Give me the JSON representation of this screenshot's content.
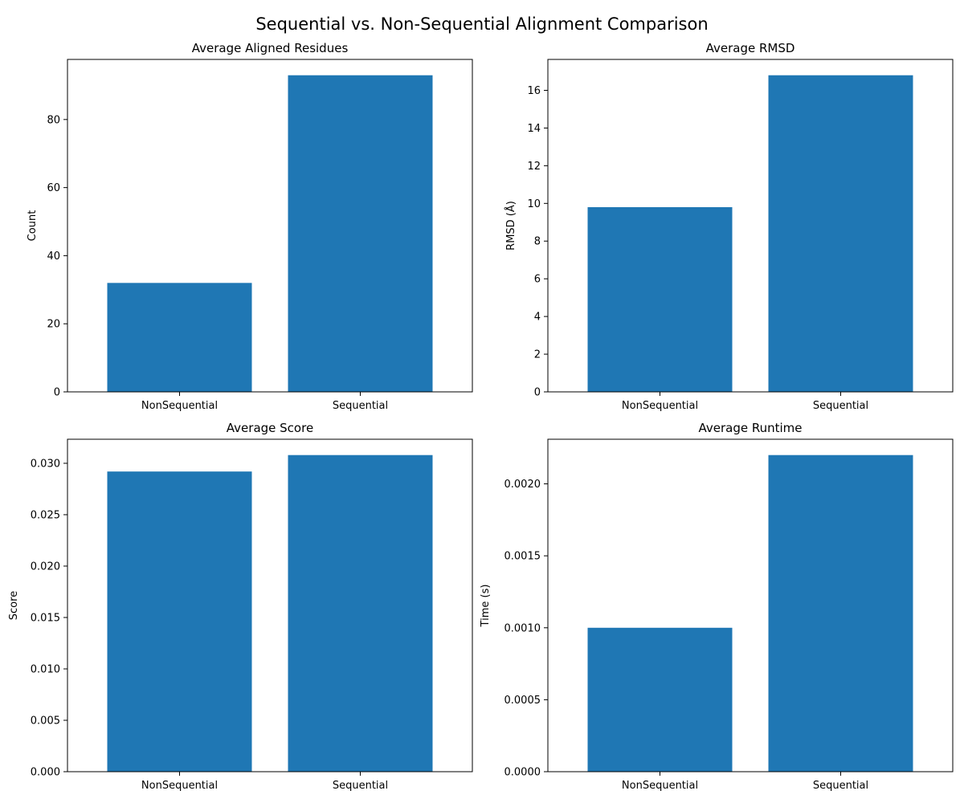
{
  "figure": {
    "title": "Sequential vs. Non-Sequential Alignment Comparison",
    "bar_color": "#1f77b4"
  },
  "chart_data": [
    {
      "type": "bar",
      "title": "Average Aligned Residues",
      "xlabel": "",
      "ylabel": "Count",
      "categories": [
        "NonSequential",
        "Sequential"
      ],
      "values": [
        32.0,
        93.0
      ],
      "ylim": [
        0,
        97.65
      ],
      "yticks": [
        0,
        20,
        40,
        60,
        80
      ],
      "ytick_labels": [
        "0",
        "20",
        "40",
        "60",
        "80"
      ],
      "grid": false,
      "legend": "none"
    },
    {
      "type": "bar",
      "title": "Average RMSD",
      "xlabel": "",
      "ylabel": "RMSD (Å)",
      "categories": [
        "NonSequential",
        "Sequential"
      ],
      "values": [
        9.8,
        16.8
      ],
      "ylim": [
        0,
        17.64
      ],
      "yticks": [
        0,
        2,
        4,
        6,
        8,
        10,
        12,
        14,
        16
      ],
      "ytick_labels": [
        "0",
        "2",
        "4",
        "6",
        "8",
        "10",
        "12",
        "14",
        "16"
      ],
      "grid": false,
      "legend": "none"
    },
    {
      "type": "bar",
      "title": "Average Score",
      "xlabel": "",
      "ylabel": "Score",
      "categories": [
        "NonSequential",
        "Sequential"
      ],
      "values": [
        0.0292,
        0.0308
      ],
      "ylim": [
        0,
        0.03234
      ],
      "yticks": [
        0,
        0.005,
        0.01,
        0.015,
        0.02,
        0.025,
        0.03
      ],
      "ytick_labels": [
        "0.000",
        "0.005",
        "0.010",
        "0.015",
        "0.020",
        "0.025",
        "0.030"
      ],
      "grid": false,
      "legend": "none"
    },
    {
      "type": "bar",
      "title": "Average Runtime",
      "xlabel": "",
      "ylabel": "Time (s)",
      "categories": [
        "NonSequential",
        "Sequential"
      ],
      "values": [
        0.001,
        0.0022
      ],
      "ylim": [
        0,
        0.00231
      ],
      "yticks": [
        0,
        0.0005,
        0.001,
        0.0015,
        0.002
      ],
      "ytick_labels": [
        "0.0000",
        "0.0005",
        "0.0010",
        "0.0015",
        "0.0020"
      ],
      "grid": false,
      "legend": "none"
    }
  ]
}
